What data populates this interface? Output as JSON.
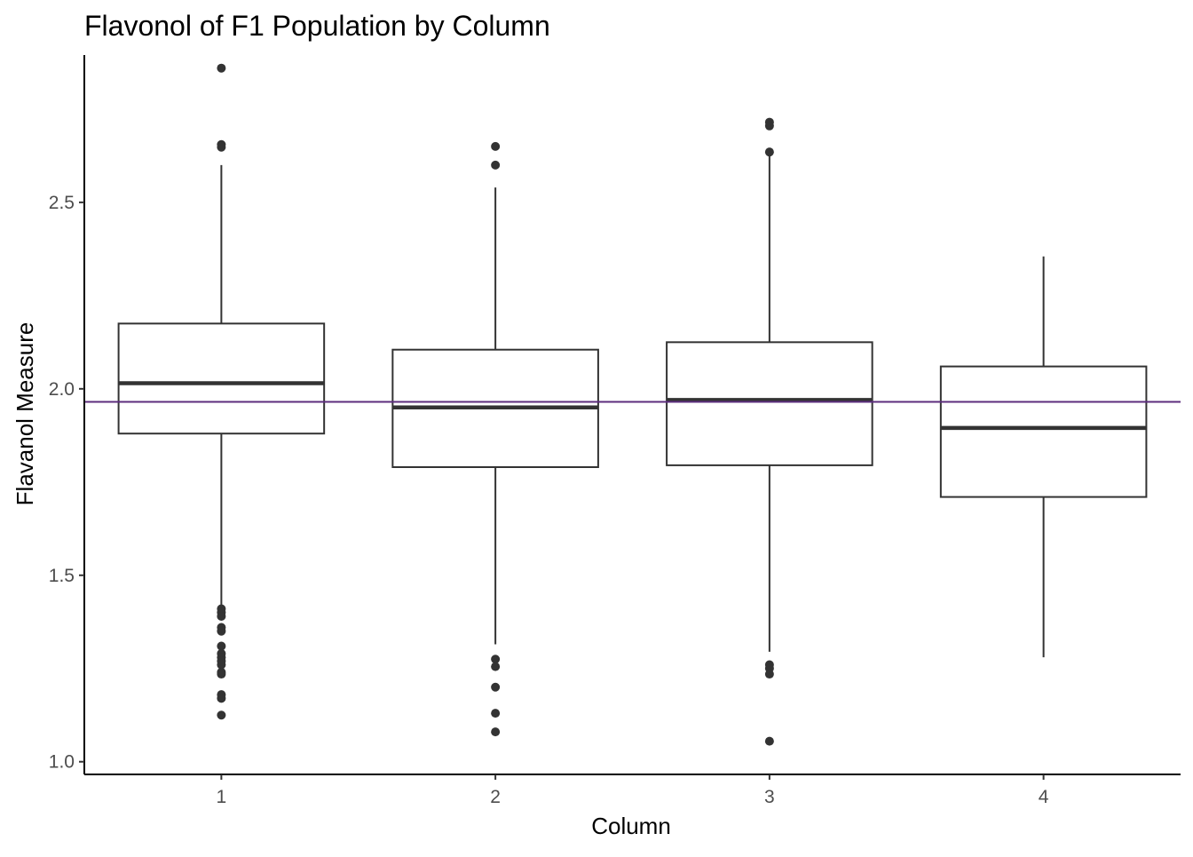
{
  "chart_data": {
    "type": "boxplot",
    "title": "Flavonol of F1 Population by Column",
    "xlabel": "Column",
    "ylabel": "Flavanol Measure",
    "categories": [
      "1",
      "2",
      "3",
      "4"
    ],
    "ylim": [
      0.966,
      2.895
    ],
    "y_ticks": [
      1.0,
      1.5,
      2.0,
      2.5
    ],
    "y_tick_labels": [
      "1.0",
      "1.5",
      "2.0",
      "2.5"
    ],
    "grid": false,
    "reference_line": {
      "y": 1.965,
      "color": "#5c2d7e"
    },
    "boxes": [
      {
        "category": "1",
        "whisker_low": 1.42,
        "q1": 1.88,
        "median": 2.015,
        "q3": 2.175,
        "whisker_high": 2.6,
        "outliers": [
          2.86,
          2.655,
          2.648,
          1.41,
          1.4,
          1.39,
          1.36,
          1.35,
          1.31,
          1.29,
          1.28,
          1.27,
          1.26,
          1.24,
          1.235,
          1.18,
          1.17,
          1.125
        ]
      },
      {
        "category": "2",
        "whisker_low": 1.315,
        "q1": 1.79,
        "median": 1.95,
        "q3": 2.105,
        "whisker_high": 2.54,
        "outliers": [
          2.65,
          2.6,
          1.275,
          1.255,
          1.2,
          1.13,
          1.08
        ]
      },
      {
        "category": "3",
        "whisker_low": 1.295,
        "q1": 1.795,
        "median": 1.97,
        "q3": 2.125,
        "whisker_high": 2.625,
        "outliers": [
          2.715,
          2.705,
          2.635,
          1.26,
          1.25,
          1.235,
          1.055
        ]
      },
      {
        "category": "4",
        "whisker_low": 1.28,
        "q1": 1.71,
        "median": 1.895,
        "q3": 2.06,
        "whisker_high": 2.355,
        "outliers": []
      }
    ],
    "colors": {
      "box": "#333333",
      "outlier": "#333333",
      "axis": "#000000"
    }
  }
}
